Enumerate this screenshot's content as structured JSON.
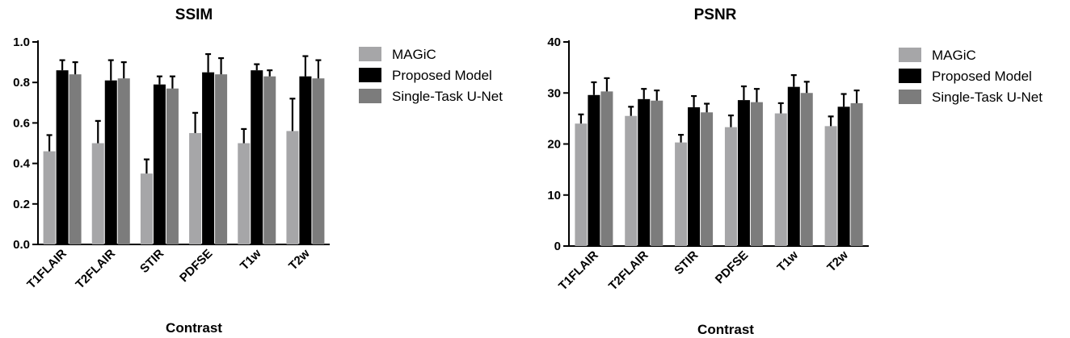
{
  "chart_data": [
    {
      "type": "bar",
      "title": "SSIM",
      "xlabel": "Contrast",
      "ylabel": "",
      "ylim": [
        0,
        1.0
      ],
      "yticks": [
        "0.0",
        "0.2",
        "0.4",
        "0.6",
        "0.8",
        "1.0"
      ],
      "ytick_values": [
        0,
        0.2,
        0.4,
        0.6,
        0.8,
        1.0
      ],
      "categories": [
        "T1FLAIR",
        "T2FLAIR",
        "STIR",
        "PDFSE",
        "T1w",
        "T2w"
      ],
      "legend_position": "right",
      "error_bars": true,
      "series": [
        {
          "name": "MAGiC",
          "color": "#a6a6a8",
          "values": [
            0.46,
            0.5,
            0.35,
            0.55,
            0.5,
            0.56
          ],
          "errors": [
            0.08,
            0.11,
            0.07,
            0.1,
            0.07,
            0.16
          ]
        },
        {
          "name": "Proposed Model",
          "color": "#000000",
          "values": [
            0.86,
            0.81,
            0.79,
            0.85,
            0.86,
            0.83
          ],
          "errors": [
            0.05,
            0.1,
            0.04,
            0.09,
            0.03,
            0.1
          ]
        },
        {
          "name": "Single-Task U-Net",
          "color": "#7c7c7c",
          "values": [
            0.84,
            0.82,
            0.77,
            0.84,
            0.83,
            0.82
          ],
          "errors": [
            0.06,
            0.08,
            0.06,
            0.08,
            0.03,
            0.09
          ]
        }
      ]
    },
    {
      "type": "bar",
      "title": "PSNR",
      "xlabel": "Contrast",
      "ylabel": "",
      "ylim": [
        0,
        40
      ],
      "yticks": [
        "0",
        "10",
        "20",
        "30",
        "40"
      ],
      "ytick_values": [
        0,
        10,
        20,
        30,
        40
      ],
      "categories": [
        "T1FLAIR",
        "T2FLAIR",
        "STIR",
        "PDFSE",
        "T1w",
        "T2w"
      ],
      "legend_position": "right",
      "error_bars": true,
      "series": [
        {
          "name": "MAGiC",
          "color": "#a6a6a8",
          "values": [
            24.0,
            25.5,
            20.3,
            23.3,
            26.0,
            23.5
          ],
          "errors": [
            1.8,
            1.8,
            1.5,
            2.3,
            2.0,
            1.9
          ]
        },
        {
          "name": "Proposed Model",
          "color": "#000000",
          "values": [
            29.6,
            28.8,
            27.2,
            28.6,
            31.2,
            27.3
          ],
          "errors": [
            2.5,
            2.0,
            2.2,
            2.7,
            2.3,
            2.5
          ]
        },
        {
          "name": "Single-Task U-Net",
          "color": "#7c7c7c",
          "values": [
            30.3,
            28.5,
            26.2,
            28.2,
            30.0,
            28.0
          ],
          "errors": [
            2.6,
            2.0,
            1.7,
            2.6,
            2.2,
            2.5
          ]
        }
      ]
    }
  ]
}
